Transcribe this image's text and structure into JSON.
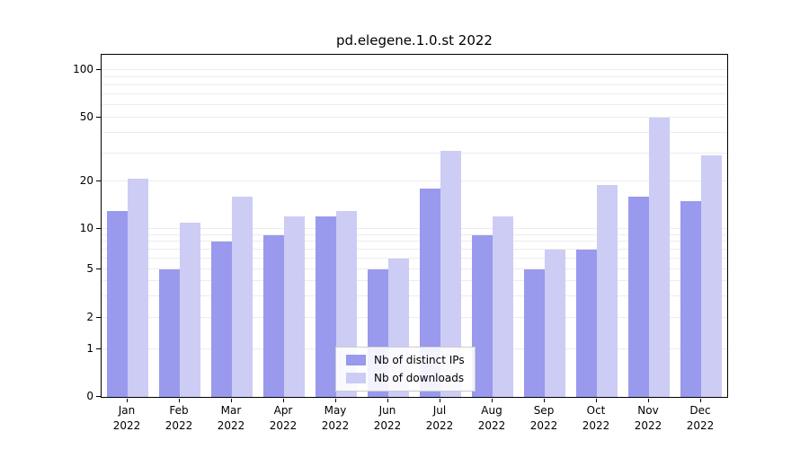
{
  "title": "pd.elegene.1.0.st 2022",
  "chart_data": {
    "type": "bar",
    "title": "pd.elegene.1.0.st 2022",
    "yscale": "symlog",
    "ylim": [
      0,
      125
    ],
    "yticks": [
      0,
      1,
      2,
      5,
      10,
      20,
      50,
      100
    ],
    "grid": true,
    "legend_position": "lower center",
    "categories": [
      {
        "month": "Jan",
        "year": "2022"
      },
      {
        "month": "Feb",
        "year": "2022"
      },
      {
        "month": "Mar",
        "year": "2022"
      },
      {
        "month": "Apr",
        "year": "2022"
      },
      {
        "month": "May",
        "year": "2022"
      },
      {
        "month": "Jun",
        "year": "2022"
      },
      {
        "month": "Jul",
        "year": "2022"
      },
      {
        "month": "Aug",
        "year": "2022"
      },
      {
        "month": "Sep",
        "year": "2022"
      },
      {
        "month": "Oct",
        "year": "2022"
      },
      {
        "month": "Nov",
        "year": "2022"
      },
      {
        "month": "Dec",
        "year": "2022"
      }
    ],
    "series": [
      {
        "name": "Nb of distinct IPs",
        "color": "#9999ee",
        "values": [
          13,
          5,
          8,
          9,
          12,
          5,
          18,
          9,
          5,
          7,
          16,
          15
        ]
      },
      {
        "name": "Nb of downloads",
        "color": "#ccccf5",
        "values": [
          21,
          11,
          16,
          12,
          13,
          6,
          31,
          12,
          7,
          19,
          50,
          29
        ]
      }
    ]
  }
}
